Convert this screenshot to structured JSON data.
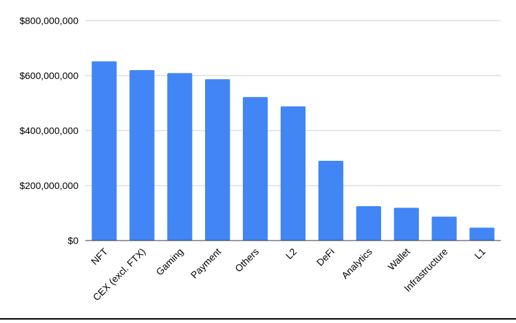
{
  "chart_data": {
    "type": "bar",
    "title": "",
    "xlabel": "",
    "ylabel": "",
    "categories": [
      "NFT",
      "CEX (excl. FTX)",
      "Gaming",
      "Payment",
      "Others",
      "L2",
      "DeFi",
      "Analytics",
      "Wallet",
      "Infrastructure",
      "L1"
    ],
    "values": [
      652000000,
      620000000,
      609000000,
      587000000,
      522000000,
      488000000,
      290000000,
      125000000,
      119000000,
      87000000,
      47000000
    ],
    "ylim": [
      0,
      800000000
    ],
    "yticks": [
      0,
      200000000,
      400000000,
      600000000,
      800000000
    ],
    "ytick_labels": [
      "$0",
      "$200,000,000",
      "$400,000,000",
      "$600,000,000",
      "$800,000,000"
    ],
    "grid": true,
    "colors": {
      "bar": "#4285f4",
      "grid": "#cccccc",
      "axis": "#333333",
      "text": "#000000"
    }
  }
}
